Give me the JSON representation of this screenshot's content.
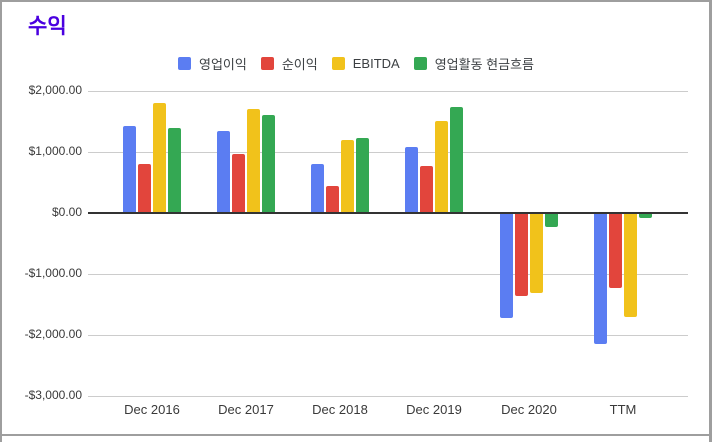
{
  "title": "수익",
  "chart_data": {
    "type": "bar",
    "title": "수익",
    "categories": [
      "Dec 2016",
      "Dec 2017",
      "Dec 2018",
      "Dec 2019",
      "Dec 2020",
      "TTM"
    ],
    "series": [
      {
        "name": "영업이익",
        "color": "#5b7df2",
        "values": [
          1420,
          1345,
          805,
          1075,
          -1710,
          -2135
        ]
      },
      {
        "name": "순이익",
        "color": "#e2453c",
        "values": [
          800,
          960,
          440,
          770,
          -1350,
          -1215
        ]
      },
      {
        "name": "EBITDA",
        "color": "#f1c21b",
        "values": [
          1800,
          1705,
          1200,
          1510,
          -1295,
          -1695
        ]
      },
      {
        "name": "영업활동 현금흐름",
        "color": "#34a853",
        "values": [
          1390,
          1600,
          1225,
          1730,
          -220,
          -70
        ]
      }
    ],
    "ylim": [
      -3000,
      2000
    ],
    "y_ticks": [
      {
        "value": 2000,
        "label": "$2,000.00"
      },
      {
        "value": 1000,
        "label": "$1,000.00"
      },
      {
        "value": 0,
        "label": "$0.00"
      },
      {
        "value": -1000,
        "label": "-$1,000.00"
      },
      {
        "value": -2000,
        "label": "-$2,000.00"
      },
      {
        "value": -3000,
        "label": "-$3,000.00"
      }
    ],
    "grid": true,
    "legend_position": "top",
    "xlabel": "",
    "ylabel": ""
  },
  "colors": {
    "title": "#4a00e0",
    "grid": "#cccccc",
    "zero_line": "#333333",
    "axis_text": "#3a3a3a",
    "border": "#9e9e9e"
  }
}
